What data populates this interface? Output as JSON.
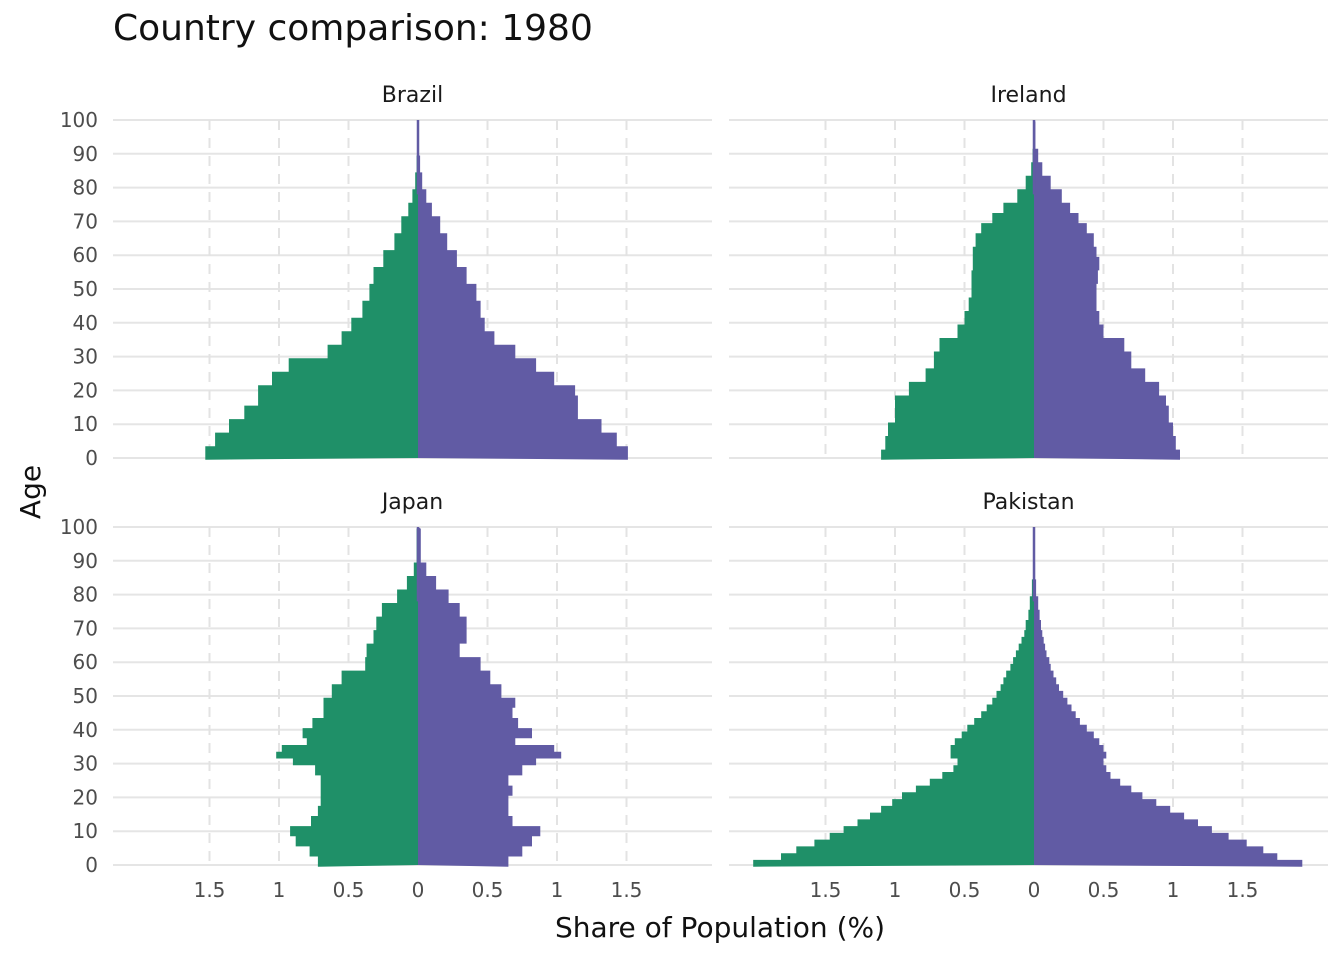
{
  "chart_data": {
    "type": "population-pyramid",
    "title": "Country comparison: 1980",
    "xlabel": "Share of Population (%)",
    "ylabel": "Age",
    "y_ticks": [
      0,
      10,
      20,
      30,
      40,
      50,
      60,
      70,
      80,
      90,
      100
    ],
    "x_tick_values": [
      -1.5,
      -1,
      -0.5,
      0,
      0.5,
      1,
      1.5
    ],
    "x_tick_labels": [
      "1.5",
      "1",
      "0.5",
      "0",
      "0.5",
      "1",
      "1.5"
    ],
    "xlim": [
      -2.15,
      2.15
    ],
    "ylim": [
      0,
      100
    ],
    "grid": true,
    "colors": {
      "left": "#1f9068",
      "right": "#615ba4"
    },
    "panels": [
      {
        "name": "Brazil",
        "left": [
          [
            0,
            1.53
          ],
          [
            4,
            1.46
          ],
          [
            8,
            1.36
          ],
          [
            12,
            1.25
          ],
          [
            16,
            1.15
          ],
          [
            19,
            1.15
          ],
          [
            22,
            1.05
          ],
          [
            26,
            0.93
          ],
          [
            30,
            0.65
          ],
          [
            34,
            0.55
          ],
          [
            38,
            0.48
          ],
          [
            42,
            0.4
          ],
          [
            47,
            0.35
          ],
          [
            52,
            0.32
          ],
          [
            57,
            0.25
          ],
          [
            62,
            0.17
          ],
          [
            67,
            0.12
          ],
          [
            72,
            0.07
          ],
          [
            76,
            0.04
          ],
          [
            80,
            0.02
          ],
          [
            85,
            0.01
          ],
          [
            90,
            0.005
          ],
          [
            100,
            0
          ]
        ],
        "right": [
          [
            0,
            1.51
          ],
          [
            4,
            1.43
          ],
          [
            8,
            1.32
          ],
          [
            12,
            1.15
          ],
          [
            16,
            1.15
          ],
          [
            19,
            1.13
          ],
          [
            22,
            0.98
          ],
          [
            26,
            0.85
          ],
          [
            30,
            0.7
          ],
          [
            34,
            0.55
          ],
          [
            38,
            0.48
          ],
          [
            42,
            0.45
          ],
          [
            47,
            0.42
          ],
          [
            52,
            0.35
          ],
          [
            57,
            0.28
          ],
          [
            62,
            0.21
          ],
          [
            67,
            0.16
          ],
          [
            72,
            0.1
          ],
          [
            76,
            0.06
          ],
          [
            80,
            0.03
          ],
          [
            85,
            0.015
          ],
          [
            90,
            0.007
          ],
          [
            100,
            0
          ]
        ]
      },
      {
        "name": "Ireland",
        "left": [
          [
            0,
            1.1
          ],
          [
            3,
            1.07
          ],
          [
            7,
            1.05
          ],
          [
            11,
            1.0
          ],
          [
            16,
            1.0
          ],
          [
            19,
            0.9
          ],
          [
            23,
            0.78
          ],
          [
            27,
            0.72
          ],
          [
            32,
            0.68
          ],
          [
            36,
            0.55
          ],
          [
            40,
            0.5
          ],
          [
            44,
            0.47
          ],
          [
            48,
            0.45
          ],
          [
            52,
            0.45
          ],
          [
            56,
            0.44
          ],
          [
            60,
            0.44
          ],
          [
            63,
            0.42
          ],
          [
            67,
            0.38
          ],
          [
            70,
            0.3
          ],
          [
            73,
            0.22
          ],
          [
            76,
            0.12
          ],
          [
            80,
            0.06
          ],
          [
            84,
            0.02
          ],
          [
            88,
            0.01
          ],
          [
            92,
            0.005
          ],
          [
            100,
            0
          ]
        ],
        "right": [
          [
            0,
            1.05
          ],
          [
            3,
            1.02
          ],
          [
            7,
            1.0
          ],
          [
            11,
            0.97
          ],
          [
            16,
            0.95
          ],
          [
            19,
            0.9
          ],
          [
            23,
            0.8
          ],
          [
            27,
            0.7
          ],
          [
            32,
            0.65
          ],
          [
            36,
            0.5
          ],
          [
            40,
            0.47
          ],
          [
            44,
            0.45
          ],
          [
            48,
            0.45
          ],
          [
            52,
            0.46
          ],
          [
            56,
            0.47
          ],
          [
            60,
            0.45
          ],
          [
            63,
            0.43
          ],
          [
            67,
            0.38
          ],
          [
            70,
            0.32
          ],
          [
            73,
            0.26
          ],
          [
            76,
            0.2
          ],
          [
            80,
            0.12
          ],
          [
            84,
            0.06
          ],
          [
            88,
            0.03
          ],
          [
            92,
            0.01
          ],
          [
            100,
            0
          ]
        ]
      },
      {
        "name": "Japan",
        "left": [
          [
            0,
            0.72
          ],
          [
            3,
            0.78
          ],
          [
            6,
            0.88
          ],
          [
            9,
            0.92
          ],
          [
            12,
            0.77
          ],
          [
            15,
            0.72
          ],
          [
            18,
            0.7
          ],
          [
            21,
            0.7
          ],
          [
            24,
            0.7
          ],
          [
            27,
            0.74
          ],
          [
            30,
            0.9
          ],
          [
            32,
            1.02
          ],
          [
            34,
            0.98
          ],
          [
            36,
            0.8
          ],
          [
            38,
            0.83
          ],
          [
            41,
            0.76
          ],
          [
            44,
            0.68
          ],
          [
            47,
            0.68
          ],
          [
            50,
            0.62
          ],
          [
            54,
            0.55
          ],
          [
            58,
            0.38
          ],
          [
            62,
            0.37
          ],
          [
            66,
            0.32
          ],
          [
            70,
            0.3
          ],
          [
            74,
            0.26
          ],
          [
            78,
            0.15
          ],
          [
            82,
            0.08
          ],
          [
            86,
            0.03
          ],
          [
            90,
            0.01
          ],
          [
            100,
            0
          ]
        ],
        "right": [
          [
            0,
            0.65
          ],
          [
            3,
            0.75
          ],
          [
            6,
            0.82
          ],
          [
            9,
            0.88
          ],
          [
            12,
            0.68
          ],
          [
            15,
            0.65
          ],
          [
            18,
            0.65
          ],
          [
            21,
            0.68
          ],
          [
            24,
            0.65
          ],
          [
            27,
            0.75
          ],
          [
            30,
            0.85
          ],
          [
            32,
            1.03
          ],
          [
            34,
            0.98
          ],
          [
            36,
            0.7
          ],
          [
            38,
            0.82
          ],
          [
            41,
            0.72
          ],
          [
            44,
            0.68
          ],
          [
            47,
            0.7
          ],
          [
            50,
            0.6
          ],
          [
            54,
            0.52
          ],
          [
            58,
            0.45
          ],
          [
            62,
            0.3
          ],
          [
            66,
            0.35
          ],
          [
            70,
            0.35
          ],
          [
            74,
            0.3
          ],
          [
            78,
            0.22
          ],
          [
            82,
            0.13
          ],
          [
            86,
            0.06
          ],
          [
            90,
            0.02
          ],
          [
            100,
            0
          ]
        ]
      },
      {
        "name": "Pakistan",
        "left": [
          [
            0,
            2.02
          ],
          [
            2,
            1.82
          ],
          [
            4,
            1.71
          ],
          [
            6,
            1.58
          ],
          [
            8,
            1.47
          ],
          [
            10,
            1.37
          ],
          [
            12,
            1.27
          ],
          [
            14,
            1.18
          ],
          [
            16,
            1.1
          ],
          [
            18,
            1.02
          ],
          [
            20,
            0.95
          ],
          [
            22,
            0.85
          ],
          [
            24,
            0.75
          ],
          [
            26,
            0.66
          ],
          [
            28,
            0.58
          ],
          [
            30,
            0.55
          ],
          [
            32,
            0.6
          ],
          [
            34,
            0.6
          ],
          [
            36,
            0.57
          ],
          [
            38,
            0.52
          ],
          [
            40,
            0.48
          ],
          [
            42,
            0.43
          ],
          [
            44,
            0.38
          ],
          [
            46,
            0.34
          ],
          [
            48,
            0.3
          ],
          [
            50,
            0.27
          ],
          [
            52,
            0.24
          ],
          [
            54,
            0.22
          ],
          [
            56,
            0.2
          ],
          [
            58,
            0.17
          ],
          [
            60,
            0.15
          ],
          [
            62,
            0.13
          ],
          [
            64,
            0.11
          ],
          [
            66,
            0.09
          ],
          [
            68,
            0.07
          ],
          [
            70,
            0.06
          ],
          [
            73,
            0.04
          ],
          [
            76,
            0.03
          ],
          [
            80,
            0.015
          ],
          [
            85,
            0.007
          ],
          [
            90,
            0.003
          ],
          [
            100,
            0
          ]
        ],
        "right": [
          [
            0,
            1.93
          ],
          [
            2,
            1.75
          ],
          [
            4,
            1.65
          ],
          [
            6,
            1.53
          ],
          [
            8,
            1.4
          ],
          [
            10,
            1.28
          ],
          [
            12,
            1.18
          ],
          [
            14,
            1.08
          ],
          [
            16,
            0.98
          ],
          [
            18,
            0.88
          ],
          [
            20,
            0.78
          ],
          [
            22,
            0.7
          ],
          [
            24,
            0.62
          ],
          [
            26,
            0.55
          ],
          [
            28,
            0.52
          ],
          [
            30,
            0.5
          ],
          [
            32,
            0.52
          ],
          [
            34,
            0.5
          ],
          [
            36,
            0.47
          ],
          [
            38,
            0.43
          ],
          [
            40,
            0.38
          ],
          [
            42,
            0.33
          ],
          [
            44,
            0.3
          ],
          [
            46,
            0.27
          ],
          [
            48,
            0.24
          ],
          [
            50,
            0.21
          ],
          [
            52,
            0.18
          ],
          [
            54,
            0.16
          ],
          [
            56,
            0.14
          ],
          [
            58,
            0.12
          ],
          [
            60,
            0.11
          ],
          [
            62,
            0.09
          ],
          [
            64,
            0.08
          ],
          [
            66,
            0.07
          ],
          [
            68,
            0.06
          ],
          [
            70,
            0.05
          ],
          [
            73,
            0.04
          ],
          [
            76,
            0.03
          ],
          [
            80,
            0.015
          ],
          [
            85,
            0.008
          ],
          [
            90,
            0.004
          ],
          [
            100,
            0
          ]
        ]
      }
    ]
  }
}
